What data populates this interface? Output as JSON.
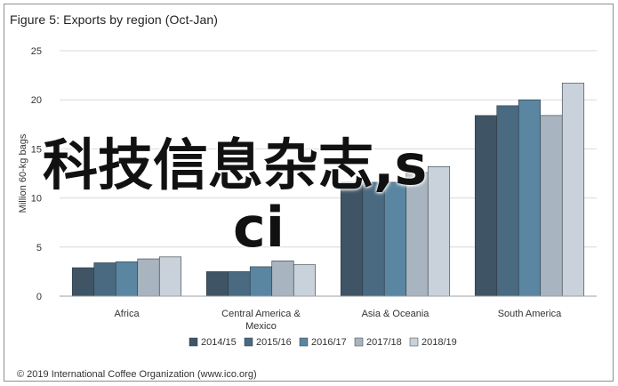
{
  "title": "Figure 5: Exports by region (Oct-Jan)",
  "footer": "© 2019 International Coffee Organization (www.ico.org)",
  "overlay": {
    "line1": "科技信息杂志,s",
    "line2": "ci"
  },
  "chart_data": {
    "type": "bar",
    "ylabel": "Million 60-kg bags",
    "ylim": [
      0,
      25
    ],
    "yticks": [
      0,
      5,
      10,
      15,
      20,
      25
    ],
    "grid": true,
    "legend_position": "bottom",
    "categories": [
      "Africa",
      "Central America & Mexico",
      "Asia & Oceania",
      "South America"
    ],
    "category_lines": [
      [
        "Africa"
      ],
      [
        "Central America &",
        "Mexico"
      ],
      [
        "Asia & Oceania"
      ],
      [
        "South America"
      ]
    ],
    "series": [
      {
        "name": "2014/15",
        "color": "#3f5464",
        "values": [
          2.9,
          2.5,
          11.6,
          18.4
        ]
      },
      {
        "name": "2015/16",
        "color": "#4a6a82",
        "values": [
          3.4,
          2.5,
          11.6,
          19.4
        ]
      },
      {
        "name": "2016/17",
        "color": "#5a86a1",
        "values": [
          3.5,
          3.0,
          11.6,
          20.0
        ]
      },
      {
        "name": "2017/18",
        "color": "#a8b4bf",
        "values": [
          3.8,
          3.6,
          12.6,
          18.4
        ]
      },
      {
        "name": "2018/19",
        "color": "#c9d2da",
        "values": [
          4.0,
          3.2,
          13.2,
          21.7
        ]
      }
    ]
  }
}
